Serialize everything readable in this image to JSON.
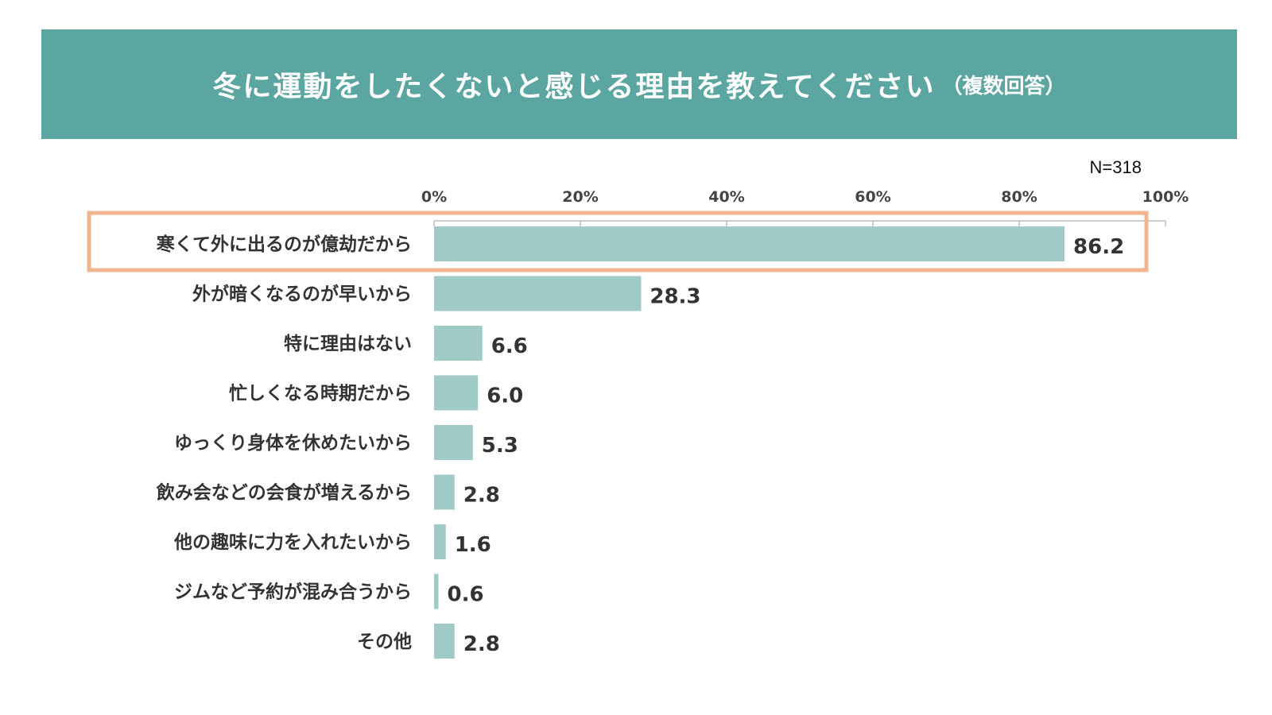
{
  "header": {
    "title": "冬に運動をしたくないと感じる理由を教えてください",
    "subtitle": "（複数回答）"
  },
  "sample": "N=318",
  "colors": {
    "banner": "#5ba6a0",
    "bar": "#9fcac5",
    "highlight": "#f0b48e",
    "axis": "#bbbbbb"
  },
  "chart_data": {
    "type": "bar",
    "orientation": "horizontal",
    "title": "冬に運動をしたくないと感じる理由を教えてください（複数回答）",
    "categories": [
      "寒くて外に出るのが億劫だから",
      "外が暗くなるのが早いから",
      "特に理由はない",
      "忙しくなる時期だから",
      "ゆっくり身体を休めたいから",
      "飲み会などの会食が増えるから",
      "他の趣味に力を入れたいから",
      "ジムなど予約が混み合うから",
      "その他"
    ],
    "values": [
      86.2,
      28.3,
      6.6,
      6.0,
      5.3,
      2.8,
      1.6,
      0.6,
      2.8
    ],
    "value_labels": [
      "86.2",
      "28.3",
      "6.6",
      "6.0",
      "5.3",
      "2.8",
      "1.6",
      "0.6",
      "2.8"
    ],
    "xlim": [
      0,
      100
    ],
    "ticks": [
      0,
      20,
      40,
      60,
      80,
      100
    ],
    "tick_labels": [
      "0%",
      "20%",
      "40%",
      "60%",
      "80%",
      "100%"
    ],
    "axis_position": "top",
    "highlighted_category_index": 0
  }
}
